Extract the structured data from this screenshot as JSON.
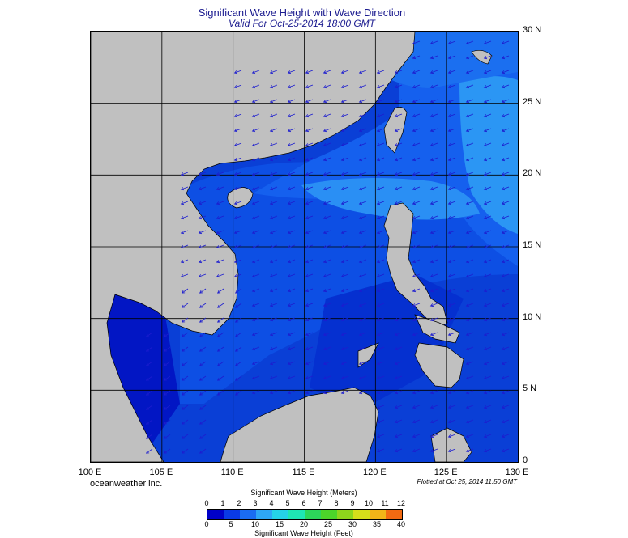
{
  "header": {
    "title": "Significant Wave Height with Wave Direction",
    "subtitle": "Valid For Oct-25-2014 18:00 GMT"
  },
  "axes": {
    "lat_labels": [
      "30 N",
      "25 N",
      "20 N",
      "15 N",
      "10 N",
      "5 N",
      "0"
    ],
    "lon_labels": [
      "100 E",
      "105 E",
      "110 E",
      "115 E",
      "120 E",
      "125 E",
      "130 E"
    ],
    "lat_range": [
      0,
      30
    ],
    "lon_range": [
      100,
      130
    ]
  },
  "footer": {
    "credit": "oceanweather inc.",
    "plotted": "Plotted at Oct 25, 2014 11:50 GMT"
  },
  "legend": {
    "meters_title": "Significant Wave Height (Meters)",
    "feet_title": "Significant Wave Height (Feet)",
    "meters_ticks": [
      "0",
      "1",
      "2",
      "3",
      "4",
      "5",
      "6",
      "7",
      "8",
      "9",
      "10",
      "11",
      "12"
    ],
    "feet_ticks": [
      "0",
      "5",
      "10",
      "15",
      "20",
      "25",
      "30",
      "35",
      "40"
    ],
    "colors": [
      "#0000c8",
      "#0a3ae6",
      "#1a6cf2",
      "#2ea6f6",
      "#25d2e8",
      "#1ee6b4",
      "#2cd65a",
      "#4cd52a",
      "#8ed61c",
      "#d6de1a",
      "#f2b418",
      "#f26a12",
      "#e0201a"
    ]
  },
  "map": {
    "land_color": "#c0c0c0",
    "sea_color": "#0a3fd6",
    "grid_color": "#000000",
    "arrow_color": "#1d1dcf"
  }
}
